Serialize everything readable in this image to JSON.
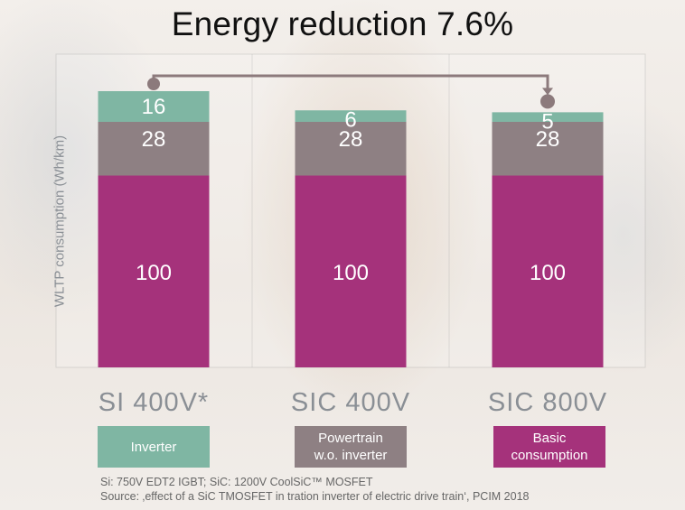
{
  "colors": {
    "inverter": "#7fb6a3",
    "powertrain": "#8e8083",
    "basic": "#a5327b",
    "arrow": "#8c7a7c"
  },
  "title": "Energy reduction 7.6%",
  "legend": [
    {
      "label": "Inverter",
      "color": "#7fb6a3"
    },
    {
      "label": "Powertrain\nw.o. inverter",
      "color": "#8e8083"
    },
    {
      "label": "Basic\nconsumption",
      "color": "#a5327b"
    }
  ],
  "footnotes": [
    "Si: 750V EDT2 IGBT; SiC: 1200V CoolSiC™ MOSFET",
    "Source: ‚effect of a SiC TMOSFET in tration inverter of electric drive train‘, PCIM 2018"
  ],
  "chart_data": {
    "type": "bar",
    "stacked": true,
    "title": "Energy reduction 7.6%",
    "ylabel": "WLTP consumption (Wh/km)",
    "categories": [
      "SI 400V*",
      "SIC 400V",
      "SIC 800V"
    ],
    "series": [
      {
        "name": "Basic consumption",
        "values": [
          100,
          100,
          100
        ],
        "color": "#a5327b"
      },
      {
        "name": "Powertrain w.o. inverter",
        "values": [
          28,
          28,
          28
        ],
        "color": "#8e8083"
      },
      {
        "name": "Inverter",
        "values": [
          16,
          6,
          5
        ],
        "color": "#7fb6a3"
      }
    ],
    "ylim": [
      0,
      144
    ],
    "grid": false,
    "legend_position": "bottom"
  }
}
